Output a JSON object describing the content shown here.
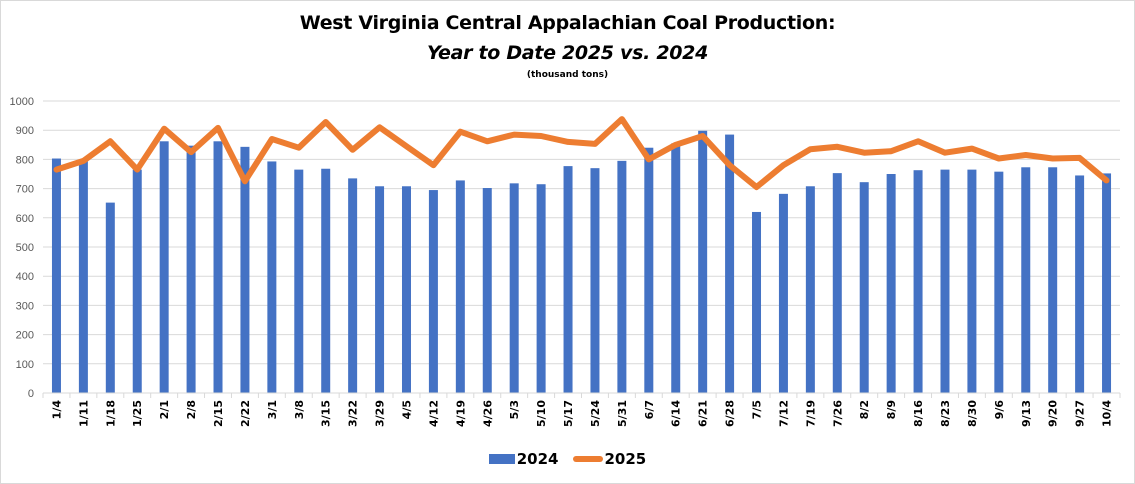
{
  "chart_data": {
    "type": "bar",
    "title": "West Virginia Central Appalachian Coal Production:",
    "subtitle": "Year to Date 2025 vs. 2024",
    "units_note": "(thousand tons)",
    "xlabel": "",
    "ylabel": "",
    "ylim": [
      0,
      1000
    ],
    "yticks": [
      0,
      100,
      200,
      300,
      400,
      500,
      600,
      700,
      800,
      900,
      1000
    ],
    "grid": true,
    "legend_position": "bottom",
    "categories": [
      "1/4",
      "1/11",
      "1/18",
      "1/25",
      "2/1",
      "2/8",
      "2/15",
      "2/22",
      "3/1",
      "3/8",
      "3/15",
      "3/22",
      "3/29",
      "4/5",
      "4/12",
      "4/19",
      "4/26",
      "5/3",
      "5/10",
      "5/17",
      "5/24",
      "5/31",
      "6/7",
      "6/14",
      "6/21",
      "6/28",
      "7/5",
      "7/12",
      "7/19",
      "7/26",
      "8/2",
      "8/9",
      "8/16",
      "8/23",
      "8/30",
      "9/6",
      "9/13",
      "9/20",
      "9/27",
      "10/4"
    ],
    "series": [
      {
        "name": "2024",
        "type": "bar",
        "color": "#4472c4",
        "values": [
          803,
          793,
          652,
          765,
          862,
          847,
          862,
          843,
          793,
          765,
          768,
          735,
          708,
          708,
          695,
          728,
          702,
          718,
          715,
          777,
          770,
          795,
          840,
          855,
          898,
          885,
          620,
          682,
          708,
          753,
          722,
          750,
          763,
          765,
          765,
          758,
          773,
          773,
          745,
          752
        ]
      },
      {
        "name": "2025",
        "type": "line",
        "color": "#ed7d31",
        "values": [
          765,
          795,
          862,
          765,
          905,
          825,
          908,
          725,
          870,
          840,
          928,
          833,
          910,
          845,
          780,
          895,
          862,
          885,
          880,
          860,
          853,
          938,
          800,
          850,
          880,
          780,
          705,
          780,
          835,
          843,
          823,
          828,
          862,
          823,
          837,
          803,
          815,
          803,
          805,
          728
        ]
      }
    ]
  }
}
